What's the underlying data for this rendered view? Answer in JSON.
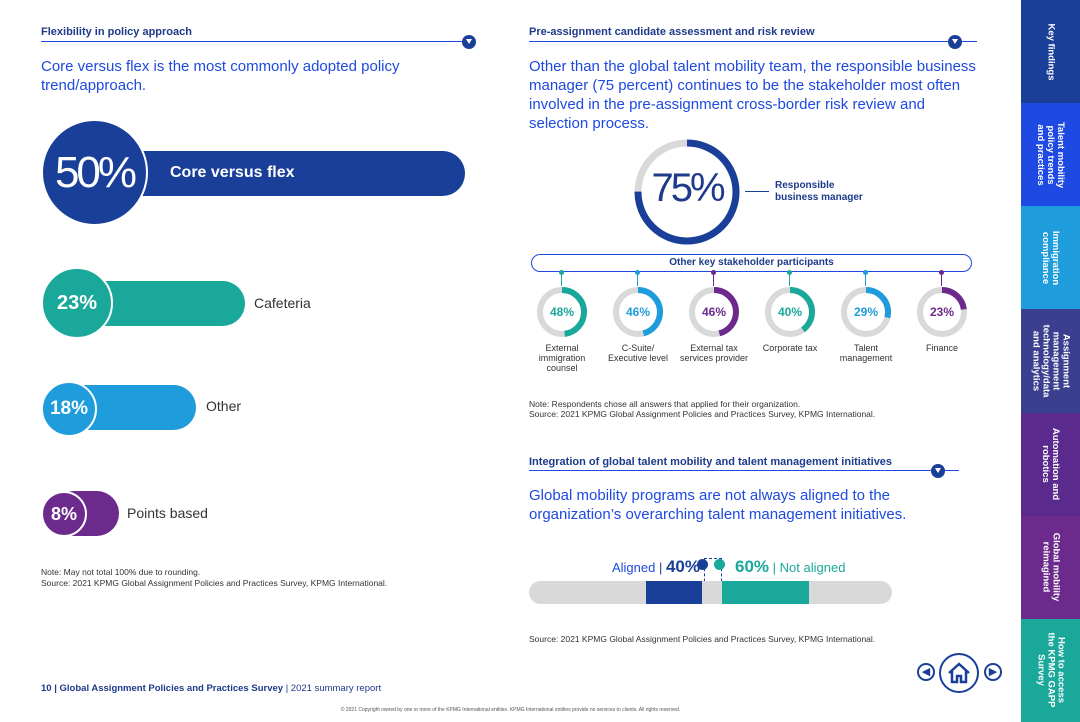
{
  "left": {
    "section_title": "Flexibility in policy approach",
    "lead": "Core versus flex is the most commonly adopted policy trend/approach.",
    "bars": [
      {
        "pct": "50%",
        "label": "Core versus flex",
        "value": 50,
        "color": "#1a3f99"
      },
      {
        "pct": "23%",
        "label": "Cafeteria",
        "value": 23,
        "color": "#1aa89a"
      },
      {
        "pct": "18%",
        "label": "Other",
        "value": 18,
        "color": "#1f9cdb"
      },
      {
        "pct": "8%",
        "label": "Points based",
        "value": 8,
        "color": "#6b2a8c"
      }
    ],
    "note": "Note: May not total 100% due to rounding.",
    "source": "Source: 2021 KPMG Global Assignment Policies and Practices Survey, KPMG International."
  },
  "right_top": {
    "section_title": "Pre-assignment candidate assessment and risk review",
    "lead": "Other than the global talent mobility team, the responsible business manager (75 percent) continues to be the stakeholder most often involved in the pre-assignment cross-border risk review and selection process.",
    "main_pct": "75%",
    "main_value": 75,
    "main_label_1": "Responsible",
    "main_label_2": "business manager",
    "group_title": "Other key stakeholder participants",
    "stakeholders": [
      {
        "pct": "48%",
        "value": 48,
        "label_lines": [
          "External",
          "immigration",
          "counsel"
        ],
        "color": "#1aa89a"
      },
      {
        "pct": "46%",
        "value": 46,
        "label_lines": [
          "C-Suite/",
          "Executive level"
        ],
        "color": "#1f9cdb"
      },
      {
        "pct": "46%",
        "value": 46,
        "label_lines": [
          "External tax",
          "services provider"
        ],
        "color": "#6b2a8c"
      },
      {
        "pct": "40%",
        "value": 40,
        "label_lines": [
          "Corporate tax"
        ],
        "color": "#1aa89a"
      },
      {
        "pct": "29%",
        "value": 29,
        "label_lines": [
          "Talent",
          "management"
        ],
        "color": "#1f9cdb"
      },
      {
        "pct": "23%",
        "value": 23,
        "label_lines": [
          "Finance"
        ],
        "color": "#6b2a8c"
      }
    ],
    "note": "Note: Respondents chose all answers that applied for their organization.",
    "source": "Source: 2021 KPMG Global Assignment Policies and Practices Survey, KPMG International."
  },
  "right_bottom": {
    "section_title": "Integration of global talent mobility and talent management initiatives",
    "lead": "Global mobility programs are not always aligned to the organization’s overarching talent management initiatives.",
    "aligned_label": "Aligned",
    "aligned_pct": "40%",
    "aligned_value": 40,
    "not_aligned_pct": "60%",
    "not_aligned_label": "Not aligned",
    "not_aligned_value": 60,
    "sep": "|",
    "source": "Source: 2021 KPMG Global Assignment Policies and Practices Survey, KPMG International."
  },
  "footer": {
    "page_num": "10",
    "report_bold": "Global Assignment Policies and Practices Survey",
    "report_rest": "2021 summary report",
    "sep": "|",
    "copyright": "© 2021 Copyright owned by one or more of the KPMG International entities. KPMG International entities provide no services to clients. All rights reserved."
  },
  "sidebar": {
    "tabs": [
      {
        "label": "Key findings",
        "color": "#1a3f99"
      },
      {
        "label": "Talent mobility policy trends and practices",
        "color": "#1e49e2"
      },
      {
        "label": "Immigration compliance",
        "color": "#1f9cdb"
      },
      {
        "label": "Assignment management technology/data and analytics",
        "color": "#3b3f8f"
      },
      {
        "label": "Automation and robotics",
        "color": "#5a2a8c"
      },
      {
        "label": "Global mobility reimagined",
        "color": "#6b2a8c"
      },
      {
        "label": "How to access the KPMG GAPP Survey",
        "color": "#1aa89a"
      }
    ]
  },
  "colors": {
    "navy": "#1a3f99",
    "teal": "#1aa89a",
    "blue": "#1f9cdb",
    "purple": "#6b2a8c",
    "gray": "#d9d9d9"
  }
}
